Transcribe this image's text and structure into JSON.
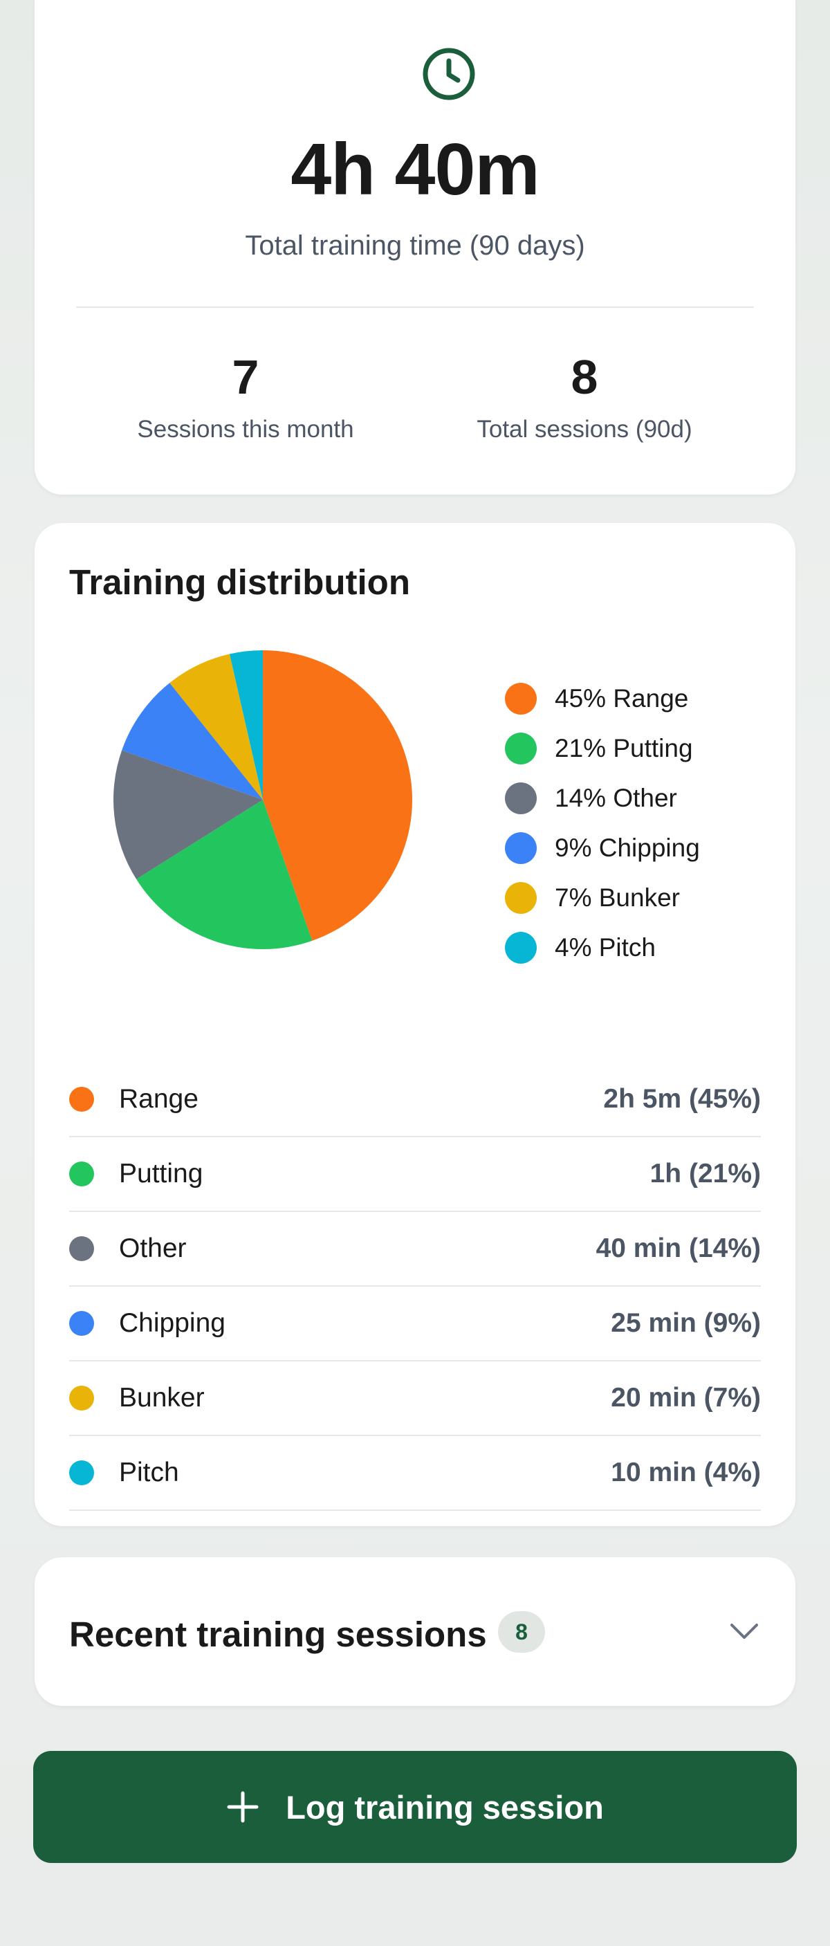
{
  "summary": {
    "icon": "clock-icon",
    "total_time": "4h 40m",
    "total_label": "Total training time (90 days)",
    "stats": [
      {
        "value": "7",
        "label": "Sessions this month"
      },
      {
        "value": "8",
        "label": "Total sessions (90d)"
      }
    ]
  },
  "distribution": {
    "title": "Training distribution",
    "legend": [
      {
        "text": "45% Range",
        "color": "#f97316"
      },
      {
        "text": "21% Putting",
        "color": "#22c55e"
      },
      {
        "text": "14% Other",
        "color": "#6b7280"
      },
      {
        "text": "9% Chipping",
        "color": "#3b82f6"
      },
      {
        "text": "7% Bunker",
        "color": "#eab308"
      },
      {
        "text": "4% Pitch",
        "color": "#06b6d4"
      }
    ],
    "rows": [
      {
        "label": "Range",
        "value": "2h 5m (45%)",
        "color": "#f97316"
      },
      {
        "label": "Putting",
        "value": "1h (21%)",
        "color": "#22c55e"
      },
      {
        "label": "Other",
        "value": "40 min (14%)",
        "color": "#6b7280"
      },
      {
        "label": "Chipping",
        "value": "25 min (9%)",
        "color": "#3b82f6"
      },
      {
        "label": "Bunker",
        "value": "20 min (7%)",
        "color": "#eab308"
      },
      {
        "label": "Pitch",
        "value": "10 min (4%)",
        "color": "#06b6d4"
      }
    ]
  },
  "chart_data": {
    "type": "pie",
    "categories": [
      "Range",
      "Putting",
      "Other",
      "Chipping",
      "Bunker",
      "Pitch"
    ],
    "values": [
      125,
      60,
      40,
      25,
      20,
      10
    ],
    "percent": [
      45,
      21,
      14,
      9,
      7,
      4
    ],
    "colors": [
      "#f97316",
      "#22c55e",
      "#6b7280",
      "#3b82f6",
      "#eab308",
      "#06b6d4"
    ],
    "legend": "right"
  },
  "recent": {
    "title": "Recent training sessions",
    "count": "8",
    "icon": "chevron-down-icon"
  },
  "log_button": {
    "label": "Log training session",
    "icon": "plus-icon",
    "color": "#1b5e3b"
  }
}
